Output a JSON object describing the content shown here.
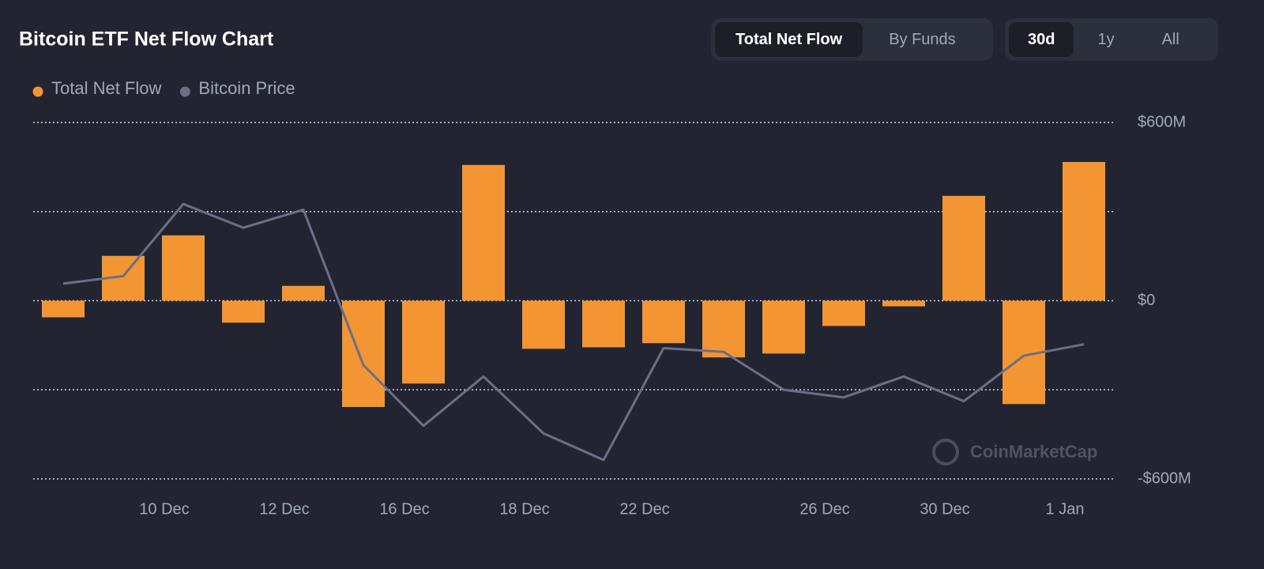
{
  "chart_data": {
    "type": "bar",
    "title": "Bitcoin ETF Net Flow Chart",
    "categories": [
      null,
      null,
      "10 Dec",
      null,
      "12 Dec",
      null,
      "16 Dec",
      null,
      "18 Dec",
      null,
      "22 Dec",
      null,
      null,
      "26 Dec",
      null,
      "30 Dec",
      null,
      "1 Jan"
    ],
    "series": [
      {
        "name": "Total Net Flow",
        "color": "#f39533",
        "type": "bar",
        "values": [
          -56,
          151,
          220,
          -74,
          50,
          -358,
          -279,
          457,
          -162,
          -157,
          -143,
          -191,
          -178,
          -85,
          -19,
          353,
          -348,
          467
        ]
      },
      {
        "name": "Bitcoin Price",
        "color": "#6b6f85",
        "type": "line",
        "axis": "y2",
        "values": [
          101800,
          102200,
          106000,
          104750,
          105700,
          97500,
          94300,
          96900,
          93900,
          92500,
          98400,
          98200,
          96200,
          95800,
          96900,
          95600,
          98000,
          98600
        ]
      }
    ],
    "ylim": [
      -600,
      600
    ],
    "yticks": [
      {
        "value": 600,
        "label": "$600M"
      },
      {
        "value": 0,
        "label": "$0"
      },
      {
        "value": -600,
        "label": "-$600M"
      }
    ],
    "grid_values": [
      -600,
      -300,
      0,
      300,
      600
    ],
    "y2lim": [
      91500,
      110300
    ],
    "grid": true,
    "legend": "top-left",
    "watermark": "CoinMarketCap"
  },
  "controls": {
    "view": [
      "Total Net Flow",
      "By Funds"
    ],
    "range": [
      "30d",
      "1y",
      "All"
    ]
  }
}
